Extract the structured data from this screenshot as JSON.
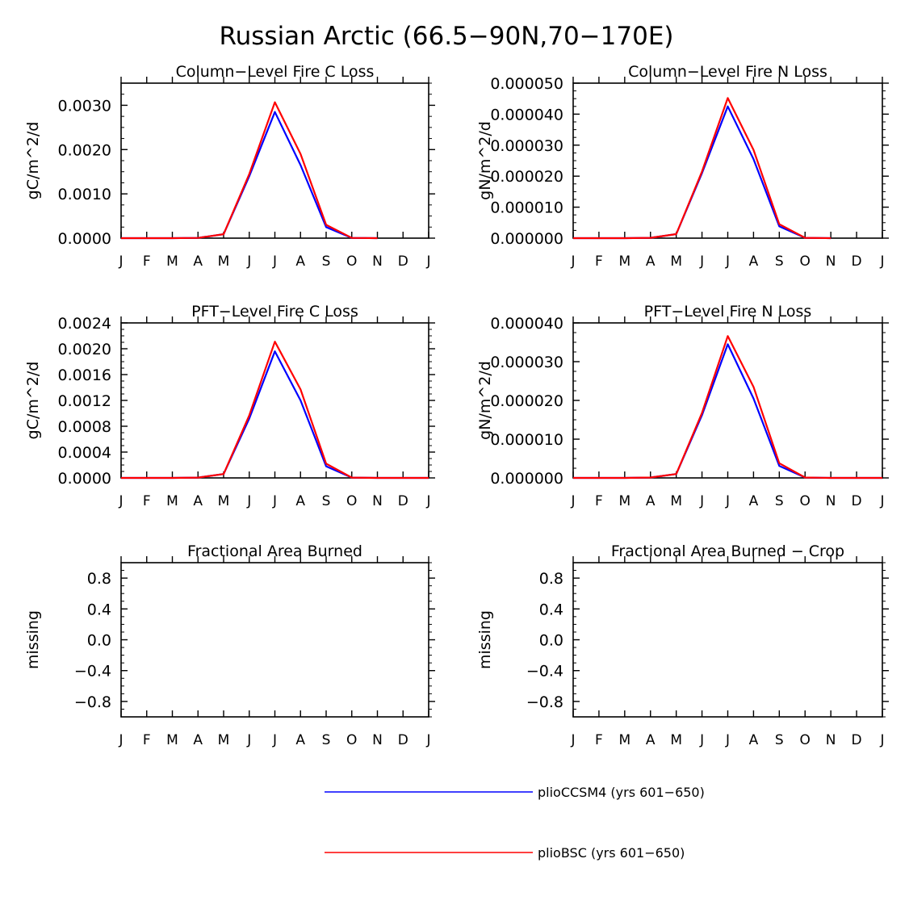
{
  "figure": {
    "title": "Russian Arctic (66.5−90N,70−170E)"
  },
  "colors": {
    "series_1": "#0000ff",
    "series_2": "#ff0000",
    "axes": "#000000"
  },
  "legend": {
    "placement": "bottom-center",
    "entries": [
      {
        "label": "plioCCSM4 (yrs 601−650)",
        "color": "#0000ff"
      },
      {
        "label": "plioBSC (yrs 601−650)",
        "color": "#ff0000"
      }
    ]
  },
  "chart_data": [
    {
      "type": "line",
      "title": "Column−Level Fire C Loss",
      "ylabel": "gC/m^2/d",
      "categories": [
        "J",
        "F",
        "M",
        "A",
        "M",
        "J",
        "J",
        "A",
        "S",
        "O",
        "N",
        "D",
        "J"
      ],
      "ylim": [
        0,
        0.0035
      ],
      "yticks": [
        0,
        0.001,
        0.002,
        0.003
      ],
      "ytick_labels": [
        "0.0000",
        "0.0010",
        "0.0020",
        "0.0030"
      ],
      "series": [
        {
          "name": "plioCCSM4 (yrs 601−650)",
          "color": "#0000ff",
          "values": [
            0,
            0,
            0,
            5e-06,
            9e-05,
            0.0014,
            0.00285,
            0.00165,
            0.00025,
            5e-06,
            0,
            null,
            null
          ]
        },
        {
          "name": "plioBSC (yrs 601−650)",
          "color": "#ff0000",
          "values": [
            0,
            0,
            0,
            5e-06,
            9e-05,
            0.00145,
            0.00307,
            0.0019,
            0.0003,
            5e-06,
            0,
            null,
            null
          ]
        }
      ]
    },
    {
      "type": "line",
      "title": "Column−Level Fire N Loss",
      "ylabel": "gN/m^2/d",
      "categories": [
        "J",
        "F",
        "M",
        "A",
        "M",
        "J",
        "J",
        "A",
        "S",
        "O",
        "N",
        "D",
        "J"
      ],
      "ylim": [
        0,
        5e-05
      ],
      "yticks": [
        0,
        1e-05,
        2e-05,
        3e-05,
        4e-05,
        5e-05
      ],
      "ytick_labels": [
        "0.000000",
        "0.000010",
        "0.000020",
        "0.000030",
        "0.000040",
        "0.000050"
      ],
      "series": [
        {
          "name": "plioCCSM4 (yrs 601−650)",
          "color": "#0000ff",
          "values": [
            0,
            0,
            0,
            1e-07,
            1.3e-06,
            2.1e-05,
            4.25e-05,
            2.55e-05,
            3.8e-06,
            1e-07,
            0,
            null,
            null
          ]
        },
        {
          "name": "plioBSC (yrs 601−650)",
          "color": "#ff0000",
          "values": [
            0,
            0,
            0,
            1e-07,
            1.3e-06,
            2.15e-05,
            4.52e-05,
            2.85e-05,
            4.5e-06,
            1e-07,
            0,
            null,
            null
          ]
        }
      ]
    },
    {
      "type": "line",
      "title": "PFT−Level Fire C Loss",
      "ylabel": "gC/m^2/d",
      "categories": [
        "J",
        "F",
        "M",
        "A",
        "M",
        "J",
        "J",
        "A",
        "S",
        "O",
        "N",
        "D",
        "J"
      ],
      "ylim": [
        0,
        0.0024
      ],
      "yticks": [
        0,
        0.0004,
        0.0008,
        0.0012,
        0.0016,
        0.002,
        0.0024
      ],
      "ytick_labels": [
        "0.0000",
        "0.0004",
        "0.0008",
        "0.0012",
        "0.0016",
        "0.0020",
        "0.0024"
      ],
      "series": [
        {
          "name": "plioCCSM4 (yrs 601−650)",
          "color": "#0000ff",
          "values": [
            0,
            0,
            0,
            5e-06,
            6e-05,
            0.00092,
            0.00196,
            0.0012,
            0.00018,
            5e-06,
            0,
            0,
            0
          ]
        },
        {
          "name": "plioBSC (yrs 601−650)",
          "color": "#ff0000",
          "values": [
            0,
            0,
            0,
            5e-06,
            6e-05,
            0.00097,
            0.00211,
            0.00137,
            0.00022,
            5e-06,
            0,
            0,
            0
          ]
        }
      ]
    },
    {
      "type": "line",
      "title": "PFT−Level Fire N Loss",
      "ylabel": "gN/m^2/d",
      "categories": [
        "J",
        "F",
        "M",
        "A",
        "M",
        "J",
        "J",
        "A",
        "S",
        "O",
        "N",
        "D",
        "J"
      ],
      "ylim": [
        0,
        4e-05
      ],
      "yticks": [
        0,
        1e-05,
        2e-05,
        3e-05,
        4e-05
      ],
      "ytick_labels": [
        "0.000000",
        "0.000010",
        "0.000020",
        "0.000030",
        "0.000040"
      ],
      "series": [
        {
          "name": "plioCCSM4 (yrs 601−650)",
          "color": "#0000ff",
          "values": [
            0,
            0,
            0,
            1e-07,
            1e-06,
            1.62e-05,
            3.45e-05,
            2.05e-05,
            3.1e-06,
            1e-07,
            0,
            0,
            0
          ]
        },
        {
          "name": "plioBSC (yrs 601−650)",
          "color": "#ff0000",
          "values": [
            0,
            0,
            0,
            1e-07,
            1e-06,
            1.68e-05,
            3.66e-05,
            2.35e-05,
            3.8e-06,
            1e-07,
            0,
            0,
            0
          ]
        }
      ]
    },
    {
      "type": "line",
      "title": "Fractional Area Burned",
      "ylabel": "missing",
      "categories": [
        "J",
        "F",
        "M",
        "A",
        "M",
        "J",
        "J",
        "A",
        "S",
        "O",
        "N",
        "D",
        "J"
      ],
      "ylim": [
        -1,
        1
      ],
      "yticks": [
        -0.8,
        -0.4,
        0,
        0.4,
        0.8
      ],
      "ytick_labels": [
        "−0.8",
        "−0.4",
        "0.0",
        "0.4",
        "0.8"
      ],
      "series": []
    },
    {
      "type": "line",
      "title": "Fractional Area Burned − Crop",
      "ylabel": "missing",
      "categories": [
        "J",
        "F",
        "M",
        "A",
        "M",
        "J",
        "J",
        "A",
        "S",
        "O",
        "N",
        "D",
        "J"
      ],
      "ylim": [
        -1,
        1
      ],
      "yticks": [
        -0.8,
        -0.4,
        0,
        0.4,
        0.8
      ],
      "ytick_labels": [
        "−0.8",
        "−0.4",
        "0.0",
        "0.4",
        "0.8"
      ],
      "series": []
    }
  ]
}
